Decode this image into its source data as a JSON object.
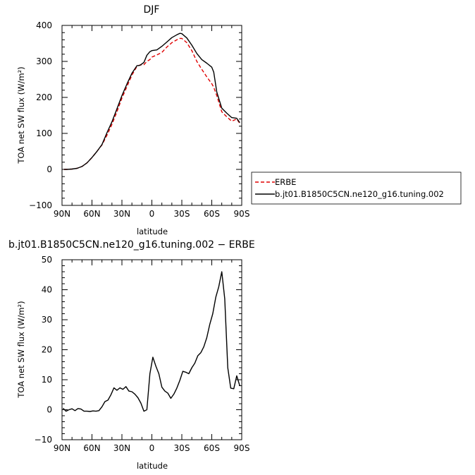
{
  "chart_data": [
    {
      "type": "line",
      "title": "DJF",
      "xlabel": "latitude",
      "ylabel": "TOA net SW flux (W/m²)",
      "xlim": [
        -90,
        90
      ],
      "ylim": [
        -100,
        400
      ],
      "x_ticks": [
        -90,
        -60,
        -30,
        0,
        30,
        60,
        90
      ],
      "x_tick_labels": [
        "90N",
        "60N",
        "30N",
        "0",
        "30S",
        "60S",
        "90S"
      ],
      "y_ticks": [
        -100,
        0,
        100,
        200,
        300,
        400
      ],
      "y_tick_labels": [
        "−100",
        "0",
        "100",
        "200",
        "300",
        "400"
      ],
      "legend": {
        "position": "right",
        "entries": [
          "ERBE",
          "b.jt01.B1850C5CN.ne120_g16.tuning.002"
        ]
      },
      "series": [
        {
          "name": "ERBE",
          "color": "#e00000",
          "style": "dashed",
          "x": [
            -88,
            -85,
            -80,
            -75,
            -70,
            -65,
            -60,
            -55,
            -50,
            -45,
            -40,
            -35,
            -30,
            -25,
            -20,
            -15,
            -12,
            -8,
            -5,
            -2,
            0,
            5,
            10,
            15,
            20,
            25,
            28,
            30,
            35,
            40,
            45,
            50,
            55,
            60,
            62,
            65,
            70,
            75,
            80,
            85,
            88
          ],
          "y": [
            0,
            0,
            1,
            3,
            8,
            18,
            33,
            50,
            68,
            95,
            125,
            160,
            198,
            230,
            262,
            286,
            290,
            291,
            300,
            305,
            312,
            318,
            325,
            340,
            352,
            360,
            364,
            364,
            352,
            330,
            300,
            278,
            257,
            238,
            228,
            205,
            160,
            146,
            134,
            140,
            128
          ]
        },
        {
          "name": "b.jt01.B1850C5CN.ne120_g16.tuning.002",
          "color": "#000000",
          "style": "solid",
          "x": [
            -88,
            -85,
            -80,
            -75,
            -70,
            -65,
            -60,
            -55,
            -50,
            -45,
            -40,
            -35,
            -30,
            -25,
            -20,
            -15,
            -12,
            -8,
            -5,
            -2,
            0,
            5,
            10,
            15,
            20,
            25,
            28,
            30,
            35,
            40,
            45,
            50,
            55,
            60,
            62,
            65,
            70,
            75,
            80,
            85,
            88
          ],
          "y": [
            0,
            0,
            1,
            3,
            8,
            18,
            33,
            50,
            69,
            102,
            132,
            168,
            205,
            237,
            267,
            288,
            289,
            297,
            317,
            327,
            330,
            332,
            342,
            354,
            366,
            374,
            378,
            377,
            365,
            345,
            322,
            305,
            295,
            284,
            270,
            215,
            170,
            156,
            144,
            142,
            130
          ]
        }
      ]
    },
    {
      "type": "line",
      "title": "b.jt01.B1850C5CN.ne120_g16.tuning.002 − ERBE",
      "xlabel": "latitude",
      "ylabel": "TOA net SW flux (W/m²)",
      "xlim": [
        -90,
        90
      ],
      "ylim": [
        -10,
        50
      ],
      "x_ticks": [
        -90,
        -60,
        -30,
        0,
        30,
        60,
        90
      ],
      "x_tick_labels": [
        "90N",
        "60N",
        "30N",
        "0",
        "30S",
        "60S",
        "90S"
      ],
      "y_ticks": [
        -10,
        0,
        10,
        20,
        30,
        40,
        50
      ],
      "y_tick_labels": [
        "−10",
        "0",
        "10",
        "20",
        "30",
        "40",
        "50"
      ],
      "series": [
        {
          "color": "#000000",
          "style": "solid",
          "x": [
            -89,
            -86,
            -83,
            -80,
            -77,
            -74,
            -71,
            -68,
            -65,
            -62,
            -59,
            -56,
            -53,
            -50,
            -47,
            -44,
            -41,
            -38,
            -35,
            -32,
            -29,
            -26,
            -23,
            -20,
            -17,
            -14,
            -11,
            -8,
            -5,
            -2,
            1,
            4,
            7,
            10,
            13,
            16,
            19,
            22,
            25,
            28,
            31,
            34,
            37,
            40,
            43,
            46,
            49,
            52,
            55,
            58,
            61,
            64,
            67,
            70,
            73,
            76,
            79,
            82,
            85,
            88
          ],
          "y": [
            0.5,
            -0.5,
            0,
            0.3,
            -0.3,
            0.4,
            0.2,
            -0.5,
            -0.5,
            -0.6,
            -0.4,
            -0.5,
            -0.3,
            1,
            2.7,
            3.2,
            5,
            7.3,
            6.5,
            7.3,
            6.8,
            7.7,
            6.2,
            6,
            5.2,
            4,
            2.2,
            -0.5,
            0,
            12,
            17.5,
            14.5,
            12,
            7.5,
            6.2,
            5.5,
            3.8,
            5.2,
            7.2,
            9.8,
            12.8,
            12.5,
            12,
            14,
            15.5,
            18,
            19,
            21,
            24,
            28.5,
            32,
            37.5,
            41,
            46,
            37,
            14,
            7.2,
            7,
            11.3,
            8
          ]
        }
      ]
    }
  ]
}
